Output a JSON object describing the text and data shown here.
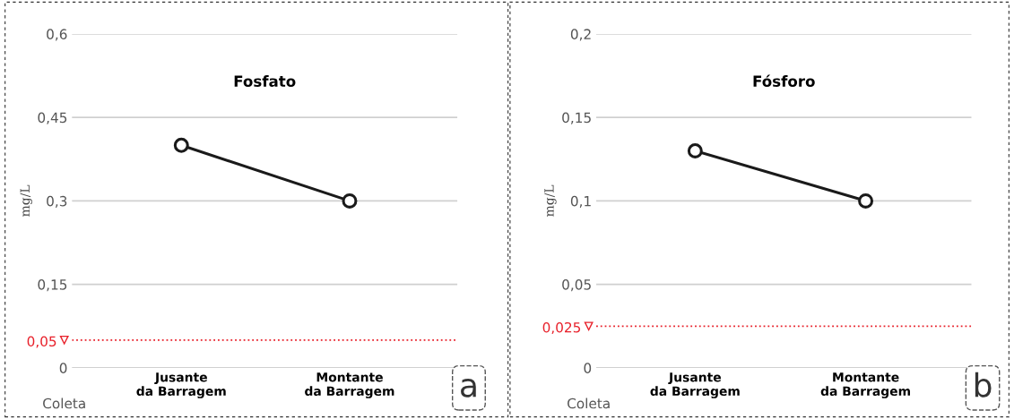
{
  "chart_data": [
    {
      "type": "line",
      "title": "Fosfato",
      "ylabel": "mg/L",
      "xlabel": "Coleta",
      "categories": [
        "Jusante\nda Barragem",
        "Montante\nda Barragem"
      ],
      "series": [
        {
          "color": "#1a1a1a",
          "values": [
            0.4,
            0.3
          ]
        }
      ],
      "ylim": [
        0,
        0.6
      ],
      "yticks": [
        0,
        {
          "value": 0.15,
          "label": "0,15"
        },
        {
          "value": 0.3,
          "label": "0,3"
        },
        {
          "value": 0.45,
          "label": "0,45"
        },
        {
          "value": 0.6,
          "label": "0,6"
        }
      ],
      "grid": "y",
      "marker": "circle",
      "line_style": "solid",
      "legend": false,
      "ref_lines": [
        {
          "axis": "y",
          "value": 0.05,
          "label": "0,05",
          "color": "#e8202a",
          "line_style": "dotted"
        }
      ],
      "annotations": [
        "a"
      ]
    },
    {
      "type": "line",
      "title": "Fósforo",
      "ylabel": "mg/L",
      "xlabel": "Coleta",
      "categories": [
        "Jusante\nda Barragem",
        "Montante\nda Barragem"
      ],
      "series": [
        {
          "color": "#1a1a1a",
          "values": [
            0.13,
            0.1
          ]
        }
      ],
      "ylim": [
        0,
        0.2
      ],
      "yticks": [
        0,
        {
          "value": 0.05,
          "label": "0,05"
        },
        {
          "value": 0.1,
          "label": "0,1"
        },
        {
          "value": 0.15,
          "label": "0,15"
        },
        {
          "value": 0.2,
          "label": "0,2"
        }
      ],
      "grid": "y",
      "marker": "circle",
      "line_style": "solid",
      "legend": false,
      "ref_lines": [
        {
          "axis": "y",
          "value": 0.025,
          "label": "0,025",
          "color": "#e8202a",
          "line_style": "dotted"
        }
      ],
      "annotations": [
        "b"
      ]
    }
  ]
}
